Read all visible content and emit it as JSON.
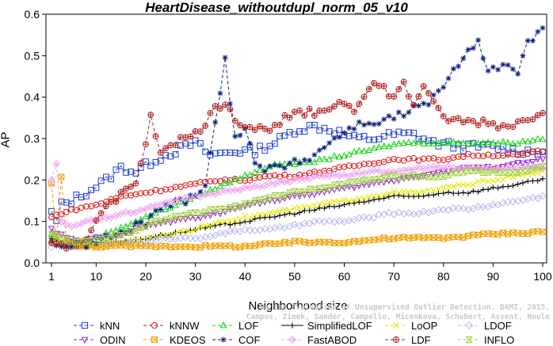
{
  "chart_data": {
    "type": "line",
    "title": "HeartDisease_withoutdupl_norm_05_v10",
    "xlabel": "Neighborhood size",
    "ylabel": "AP",
    "xlim": [
      1,
      100
    ],
    "ylim": [
      0,
      0.6
    ],
    "xticks": [
      "1",
      "10",
      "20",
      "30",
      "40",
      "50",
      "60",
      "70",
      "80",
      "90",
      "100"
    ],
    "yticks": [
      "0.0",
      "0.1",
      "0.2",
      "0.3",
      "0.4",
      "0.5",
      "0.6"
    ],
    "grid": false,
    "legend_position": "bottom",
    "series": [
      {
        "name": "kNN",
        "color": "#1f3fd0",
        "marker": "square",
        "dashed": true,
        "anchors": [
          [
            1,
            0.12
          ],
          [
            2,
            0.1
          ],
          [
            3,
            0.14
          ],
          [
            5,
            0.15
          ],
          [
            8,
            0.17
          ],
          [
            12,
            0.2
          ],
          [
            15,
            0.23
          ],
          [
            18,
            0.22
          ],
          [
            22,
            0.25
          ],
          [
            26,
            0.27
          ],
          [
            30,
            0.29
          ],
          [
            33,
            0.26
          ],
          [
            38,
            0.27
          ],
          [
            42,
            0.27
          ],
          [
            46,
            0.29
          ],
          [
            50,
            0.32
          ],
          [
            54,
            0.33
          ],
          [
            58,
            0.32
          ],
          [
            62,
            0.3
          ],
          [
            66,
            0.3
          ],
          [
            70,
            0.31
          ],
          [
            74,
            0.31
          ],
          [
            78,
            0.29
          ],
          [
            84,
            0.28
          ],
          [
            90,
            0.28
          ],
          [
            95,
            0.27
          ],
          [
            100,
            0.27
          ]
        ]
      },
      {
        "name": "kNNW",
        "color": "#e01010",
        "marker": "circle",
        "dashed": true,
        "anchors": [
          [
            1,
            0.11
          ],
          [
            3,
            0.12
          ],
          [
            6,
            0.13
          ],
          [
            10,
            0.14
          ],
          [
            15,
            0.16
          ],
          [
            20,
            0.17
          ],
          [
            25,
            0.18
          ],
          [
            30,
            0.19
          ],
          [
            35,
            0.2
          ],
          [
            40,
            0.2
          ],
          [
            45,
            0.21
          ],
          [
            50,
            0.21
          ],
          [
            55,
            0.22
          ],
          [
            60,
            0.23
          ],
          [
            65,
            0.24
          ],
          [
            70,
            0.25
          ],
          [
            75,
            0.25
          ],
          [
            80,
            0.25
          ],
          [
            85,
            0.26
          ],
          [
            90,
            0.26
          ],
          [
            95,
            0.26
          ],
          [
            100,
            0.27
          ]
        ]
      },
      {
        "name": "LOF",
        "color": "#10d010",
        "marker": "triangle",
        "dashed": true,
        "anchors": [
          [
            1,
            0.07
          ],
          [
            3,
            0.05
          ],
          [
            6,
            0.04
          ],
          [
            8,
            0.05
          ],
          [
            12,
            0.07
          ],
          [
            16,
            0.09
          ],
          [
            20,
            0.11
          ],
          [
            24,
            0.13
          ],
          [
            28,
            0.15
          ],
          [
            32,
            0.17
          ],
          [
            36,
            0.19
          ],
          [
            40,
            0.21
          ],
          [
            44,
            0.23
          ],
          [
            48,
            0.24
          ],
          [
            52,
            0.24
          ],
          [
            56,
            0.25
          ],
          [
            60,
            0.26
          ],
          [
            64,
            0.27
          ],
          [
            68,
            0.28
          ],
          [
            72,
            0.29
          ],
          [
            76,
            0.29
          ],
          [
            80,
            0.29
          ],
          [
            85,
            0.29
          ],
          [
            90,
            0.29
          ],
          [
            95,
            0.29
          ],
          [
            100,
            0.3
          ]
        ]
      },
      {
        "name": "SimplifiedLOF",
        "color": "#000000",
        "marker": "plus",
        "dashed": false,
        "anchors": [
          [
            1,
            0.06
          ],
          [
            4,
            0.04
          ],
          [
            7,
            0.04
          ],
          [
            10,
            0.05
          ],
          [
            15,
            0.05
          ],
          [
            20,
            0.06
          ],
          [
            25,
            0.07
          ],
          [
            30,
            0.08
          ],
          [
            35,
            0.09
          ],
          [
            40,
            0.1
          ],
          [
            45,
            0.11
          ],
          [
            50,
            0.12
          ],
          [
            55,
            0.13
          ],
          [
            60,
            0.14
          ],
          [
            65,
            0.15
          ],
          [
            70,
            0.16
          ],
          [
            75,
            0.16
          ],
          [
            80,
            0.17
          ],
          [
            85,
            0.17
          ],
          [
            90,
            0.18
          ],
          [
            95,
            0.19
          ],
          [
            100,
            0.2
          ]
        ]
      },
      {
        "name": "LoOP",
        "color": "#e8e800",
        "marker": "x",
        "dashed": true,
        "anchors": [
          [
            1,
            0.05
          ],
          [
            5,
            0.04
          ],
          [
            10,
            0.04
          ],
          [
            15,
            0.05
          ],
          [
            20,
            0.06
          ],
          [
            25,
            0.07
          ],
          [
            30,
            0.08
          ],
          [
            35,
            0.1
          ],
          [
            40,
            0.11
          ],
          [
            45,
            0.12
          ],
          [
            50,
            0.13
          ],
          [
            55,
            0.14
          ],
          [
            60,
            0.15
          ],
          [
            65,
            0.16
          ],
          [
            70,
            0.17
          ],
          [
            75,
            0.17
          ],
          [
            80,
            0.18
          ],
          [
            85,
            0.19
          ],
          [
            90,
            0.2
          ],
          [
            95,
            0.21
          ],
          [
            100,
            0.22
          ]
        ]
      },
      {
        "name": "LDOF",
        "color": "#b8b8f0",
        "marker": "diamond",
        "dashed": true,
        "anchors": [
          [
            1,
            0.04
          ],
          [
            5,
            0.04
          ],
          [
            10,
            0.04
          ],
          [
            15,
            0.05
          ],
          [
            20,
            0.05
          ],
          [
            25,
            0.06
          ],
          [
            30,
            0.06
          ],
          [
            35,
            0.07
          ],
          [
            40,
            0.08
          ],
          [
            45,
            0.08
          ],
          [
            50,
            0.09
          ],
          [
            55,
            0.1
          ],
          [
            60,
            0.1
          ],
          [
            65,
            0.11
          ],
          [
            70,
            0.12
          ],
          [
            75,
            0.12
          ],
          [
            80,
            0.13
          ],
          [
            85,
            0.13
          ],
          [
            90,
            0.14
          ],
          [
            95,
            0.15
          ],
          [
            100,
            0.16
          ]
        ]
      },
      {
        "name": "ODIN",
        "color": "#9020d0",
        "marker": "triangle-down",
        "dashed": true,
        "anchors": [
          [
            1,
            0.08
          ],
          [
            4,
            0.06
          ],
          [
            7,
            0.05
          ],
          [
            10,
            0.06
          ],
          [
            15,
            0.07
          ],
          [
            20,
            0.09
          ],
          [
            25,
            0.1
          ],
          [
            30,
            0.11
          ],
          [
            35,
            0.12
          ],
          [
            40,
            0.14
          ],
          [
            45,
            0.15
          ],
          [
            50,
            0.16
          ],
          [
            55,
            0.17
          ],
          [
            60,
            0.18
          ],
          [
            65,
            0.19
          ],
          [
            70,
            0.2
          ],
          [
            75,
            0.21
          ],
          [
            80,
            0.22
          ],
          [
            85,
            0.23
          ],
          [
            90,
            0.23
          ],
          [
            95,
            0.24
          ],
          [
            100,
            0.25
          ]
        ]
      },
      {
        "name": "KDEOS",
        "color": "#f0a000",
        "marker": "square-x",
        "dashed": true,
        "anchors": [
          [
            1,
            0.19
          ],
          [
            2,
            0.06
          ],
          [
            3,
            0.21
          ],
          [
            4,
            0.05
          ],
          [
            6,
            0.04
          ],
          [
            10,
            0.04
          ],
          [
            20,
            0.04
          ],
          [
            30,
            0.04
          ],
          [
            40,
            0.04
          ],
          [
            50,
            0.05
          ],
          [
            60,
            0.05
          ],
          [
            70,
            0.06
          ],
          [
            80,
            0.06
          ],
          [
            90,
            0.07
          ],
          [
            100,
            0.075
          ]
        ]
      },
      {
        "name": "COF",
        "color": "#0a1e80",
        "marker": "star",
        "dashed": true,
        "anchors": [
          [
            1,
            0.05
          ],
          [
            5,
            0.04
          ],
          [
            10,
            0.05
          ],
          [
            15,
            0.07
          ],
          [
            20,
            0.1
          ],
          [
            22,
            0.12
          ],
          [
            24,
            0.14
          ],
          [
            28,
            0.15
          ],
          [
            32,
            0.19
          ],
          [
            34,
            0.34
          ],
          [
            36,
            0.49
          ],
          [
            37,
            0.38
          ],
          [
            38,
            0.3
          ],
          [
            40,
            0.33
          ],
          [
            42,
            0.25
          ],
          [
            44,
            0.22
          ],
          [
            46,
            0.23
          ],
          [
            50,
            0.24
          ],
          [
            54,
            0.26
          ],
          [
            58,
            0.3
          ],
          [
            62,
            0.33
          ],
          [
            66,
            0.34
          ],
          [
            70,
            0.35
          ],
          [
            72,
            0.36
          ],
          [
            76,
            0.38
          ],
          [
            80,
            0.42
          ],
          [
            84,
            0.5
          ],
          [
            87,
            0.54
          ],
          [
            89,
            0.46
          ],
          [
            92,
            0.48
          ],
          [
            95,
            0.45
          ],
          [
            97,
            0.53
          ],
          [
            100,
            0.57
          ]
        ]
      },
      {
        "name": "FastABOD",
        "color": "#f0a0f0",
        "marker": "diamond-x",
        "dashed": true,
        "anchors": [
          [
            1,
            0.2
          ],
          [
            2,
            0.24
          ],
          [
            3,
            0.1
          ],
          [
            5,
            0.09
          ],
          [
            8,
            0.1
          ],
          [
            12,
            0.11
          ],
          [
            16,
            0.12
          ],
          [
            20,
            0.13
          ],
          [
            25,
            0.15
          ],
          [
            30,
            0.16
          ],
          [
            35,
            0.17
          ],
          [
            40,
            0.18
          ],
          [
            45,
            0.19
          ],
          [
            50,
            0.2
          ],
          [
            55,
            0.21
          ],
          [
            60,
            0.21
          ],
          [
            65,
            0.22
          ],
          [
            70,
            0.22
          ],
          [
            75,
            0.23
          ],
          [
            80,
            0.23
          ],
          [
            85,
            0.23
          ],
          [
            90,
            0.23
          ],
          [
            95,
            0.23
          ],
          [
            100,
            0.23
          ]
        ]
      },
      {
        "name": "LDF",
        "color": "#b02020",
        "marker": "circle-plus",
        "dashed": true,
        "anchors": [
          [
            1,
            0.05
          ],
          [
            5,
            0.04
          ],
          [
            8,
            0.06
          ],
          [
            12,
            0.13
          ],
          [
            15,
            0.17
          ],
          [
            18,
            0.2
          ],
          [
            20,
            0.28
          ],
          [
            21,
            0.35
          ],
          [
            23,
            0.27
          ],
          [
            25,
            0.29
          ],
          [
            28,
            0.3
          ],
          [
            30,
            0.31
          ],
          [
            32,
            0.34
          ],
          [
            34,
            0.37
          ],
          [
            36,
            0.39
          ],
          [
            38,
            0.35
          ],
          [
            40,
            0.33
          ],
          [
            44,
            0.32
          ],
          [
            48,
            0.35
          ],
          [
            52,
            0.36
          ],
          [
            56,
            0.37
          ],
          [
            60,
            0.39
          ],
          [
            62,
            0.37
          ],
          [
            64,
            0.41
          ],
          [
            66,
            0.43
          ],
          [
            68,
            0.42
          ],
          [
            70,
            0.4
          ],
          [
            72,
            0.43
          ],
          [
            74,
            0.38
          ],
          [
            76,
            0.43
          ],
          [
            78,
            0.38
          ],
          [
            80,
            0.35
          ],
          [
            84,
            0.34
          ],
          [
            88,
            0.34
          ],
          [
            92,
            0.33
          ],
          [
            96,
            0.34
          ],
          [
            100,
            0.37
          ]
        ]
      },
      {
        "name": "INFLO",
        "color": "#a0d040",
        "marker": "hourglass",
        "dashed": true,
        "anchors": [
          [
            1,
            0.07
          ],
          [
            5,
            0.05
          ],
          [
            8,
            0.05
          ],
          [
            12,
            0.06
          ],
          [
            16,
            0.07
          ],
          [
            20,
            0.09
          ],
          [
            25,
            0.11
          ],
          [
            30,
            0.12
          ],
          [
            35,
            0.13
          ],
          [
            40,
            0.14
          ],
          [
            45,
            0.16
          ],
          [
            50,
            0.17
          ],
          [
            55,
            0.18
          ],
          [
            60,
            0.19
          ],
          [
            65,
            0.2
          ],
          [
            70,
            0.21
          ],
          [
            75,
            0.21
          ],
          [
            80,
            0.21
          ],
          [
            85,
            0.22
          ],
          [
            90,
            0.22
          ],
          [
            95,
            0.22
          ],
          [
            100,
            0.23
          ]
        ]
      }
    ]
  },
  "watermark": {
    "line1": "Campos, Zimek, Sander, Campello, Micenkova, Schubert, Assent, Houle",
    "line2": "On the Evaluation of Unsupervised Outlier Detection. DAMI, 2015."
  }
}
